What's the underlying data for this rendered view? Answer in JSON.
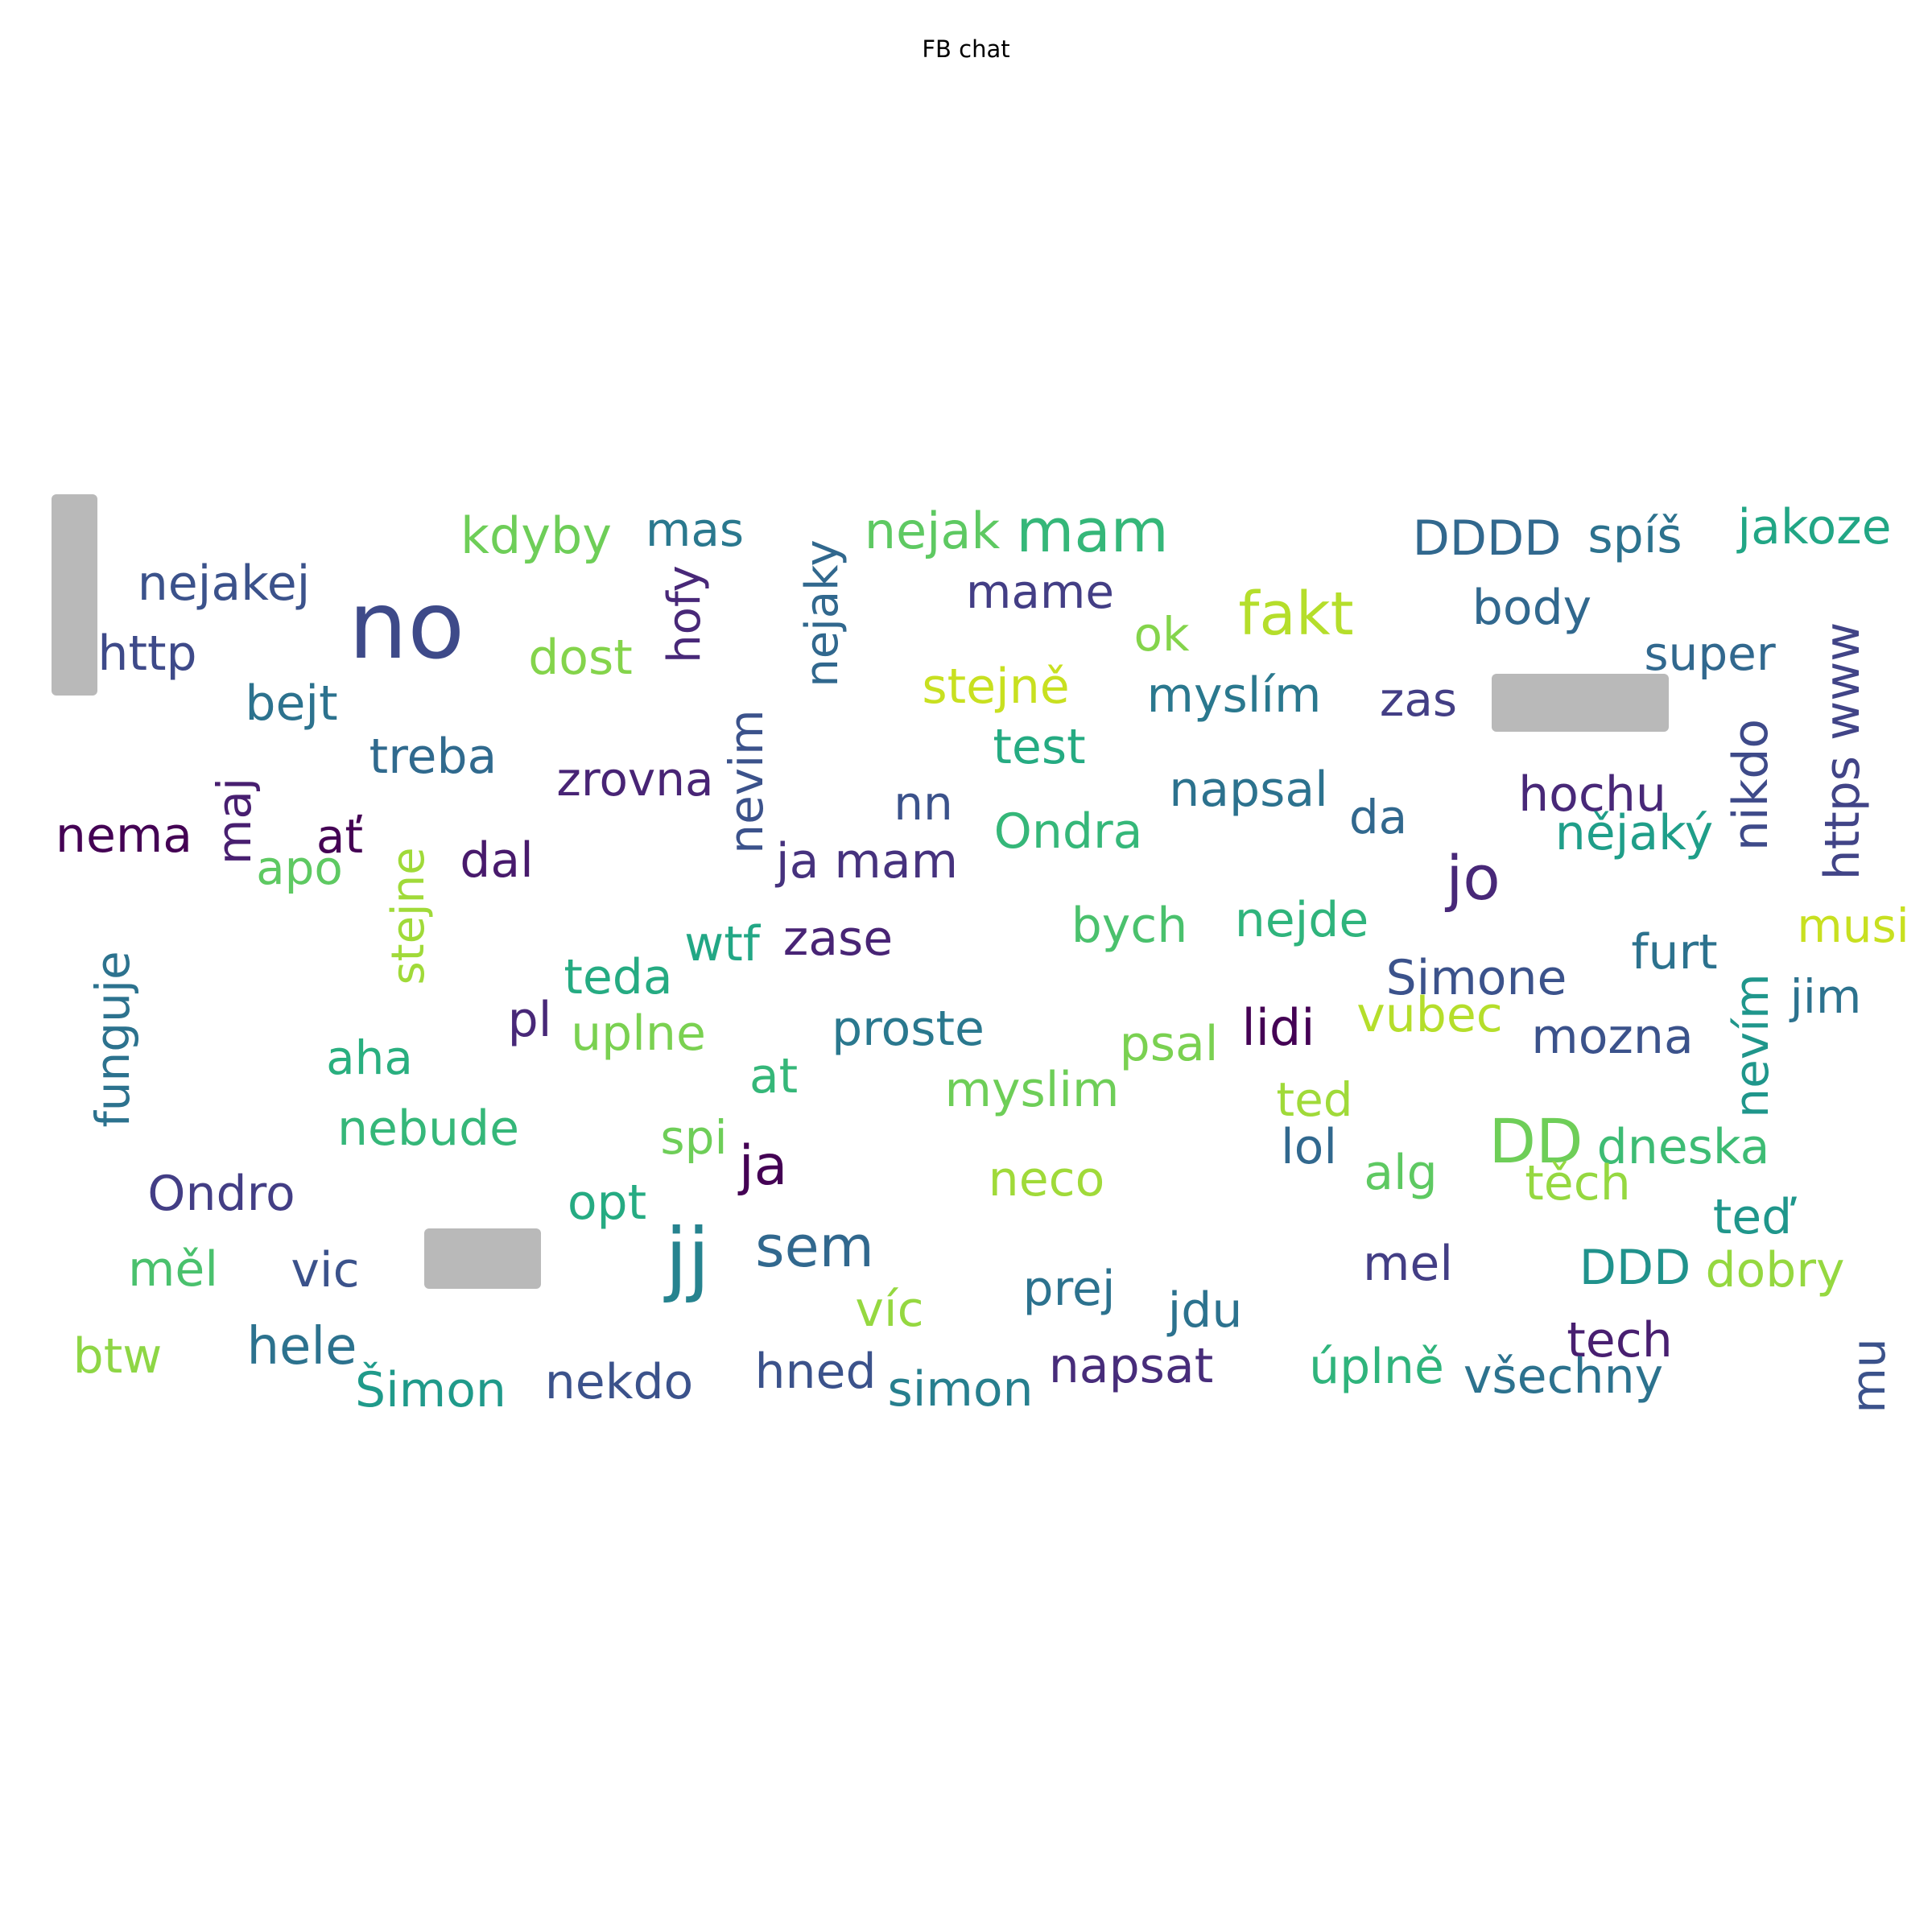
{
  "title": "FB chat",
  "colors": {
    "block": "#b9b9b9",
    "title": "#000000"
  },
  "words": [
    {
      "text": "no",
      "color": "#3e4a89"
    },
    {
      "text": "jo",
      "color": "#482878"
    },
    {
      "text": "jj",
      "color": "#26838f"
    },
    {
      "text": "sem",
      "color": "#31688e"
    },
    {
      "text": "ja",
      "color": "#440154"
    },
    {
      "text": "mam",
      "color": "#35b779"
    },
    {
      "text": "fakt",
      "color": "#b5de2b"
    },
    {
      "text": "DD",
      "color": "#6ece58"
    },
    {
      "text": "kdyby",
      "color": "#6ece58"
    },
    {
      "text": "mas",
      "color": "#2a788e"
    },
    {
      "text": "nejak",
      "color": "#5ec962"
    },
    {
      "text": "DDDD",
      "color": "#31688e"
    },
    {
      "text": "spíš",
      "color": "#2c728e"
    },
    {
      "text": "jakoze",
      "color": "#21a685"
    },
    {
      "text": "nejakej",
      "color": "#3b528b"
    },
    {
      "text": "mame",
      "color": "#433e85"
    },
    {
      "text": "body",
      "color": "#31688e"
    },
    {
      "text": "http",
      "color": "#3e4a89"
    },
    {
      "text": "dost",
      "color": "#84d44b"
    },
    {
      "text": "ok",
      "color": "#84d44b"
    },
    {
      "text": "super",
      "color": "#31688e"
    },
    {
      "text": "hofy",
      "color": "#482878"
    },
    {
      "text": "nejaky",
      "color": "#31688e"
    },
    {
      "text": "https www",
      "color": "#414487"
    },
    {
      "text": "stejně",
      "color": "#c8e020"
    },
    {
      "text": "myslím",
      "color": "#2a788e"
    },
    {
      "text": "zas",
      "color": "#433e85"
    },
    {
      "text": "bejt",
      "color": "#2c728e"
    },
    {
      "text": "test",
      "color": "#25ab82"
    },
    {
      "text": "treba",
      "color": "#306a8e"
    },
    {
      "text": "zrovna",
      "color": "#482475"
    },
    {
      "text": "nevim",
      "color": "#3b528b"
    },
    {
      "text": "napsal",
      "color": "#2c728e"
    },
    {
      "text": "hochu",
      "color": "#482878"
    },
    {
      "text": "nikdo",
      "color": "#3e4a89"
    },
    {
      "text": "maj",
      "color": "#481f70"
    },
    {
      "text": "nn",
      "color": "#3b528b"
    },
    {
      "text": "da",
      "color": "#31688e"
    },
    {
      "text": "Ondra",
      "color": "#35b779"
    },
    {
      "text": "nějaký",
      "color": "#1f9e89"
    },
    {
      "text": "nema",
      "color": "#440154"
    },
    {
      "text": "ať",
      "color": "#440154"
    },
    {
      "text": "apo",
      "color": "#5ec962"
    },
    {
      "text": "dal",
      "color": "#481a6c"
    },
    {
      "text": "ja mam",
      "color": "#46327e"
    },
    {
      "text": "stejne",
      "color": "#a0da39"
    },
    {
      "text": "bych",
      "color": "#4ac16d"
    },
    {
      "text": "nejde",
      "color": "#2fb47c"
    },
    {
      "text": "musi",
      "color": "#c8e020"
    },
    {
      "text": "wtf",
      "color": "#22a785"
    },
    {
      "text": "zase",
      "color": "#482475"
    },
    {
      "text": "furt",
      "color": "#2c728e"
    },
    {
      "text": "funguje",
      "color": "#2c728e"
    },
    {
      "text": "teda",
      "color": "#25ab82"
    },
    {
      "text": "Simone",
      "color": "#3b528b"
    },
    {
      "text": "jim",
      "color": "#2c728e"
    },
    {
      "text": "pl",
      "color": "#482878"
    },
    {
      "text": "uplne",
      "color": "#7ad151"
    },
    {
      "text": "proste",
      "color": "#2a788e"
    },
    {
      "text": "lidi",
      "color": "#440154"
    },
    {
      "text": "vubec",
      "color": "#b5de2b"
    },
    {
      "text": "mozna",
      "color": "#3b528b"
    },
    {
      "text": "nevím",
      "color": "#1f968b"
    },
    {
      "text": "aha",
      "color": "#29af7f"
    },
    {
      "text": "psal",
      "color": "#7ad151"
    },
    {
      "text": "at",
      "color": "#35b779"
    },
    {
      "text": "myslim",
      "color": "#6ece58"
    },
    {
      "text": "ted",
      "color": "#a0da39"
    },
    {
      "text": "nebude",
      "color": "#35b779"
    },
    {
      "text": "spi",
      "color": "#6ece58"
    },
    {
      "text": "lol",
      "color": "#31688e"
    },
    {
      "text": "alg",
      "color": "#5ec962"
    },
    {
      "text": "dneska",
      "color": "#3dbc74"
    },
    {
      "text": "těch",
      "color": "#95d840"
    },
    {
      "text": "Ondro",
      "color": "#433e85"
    },
    {
      "text": "neco",
      "color": "#a0da39"
    },
    {
      "text": "opt",
      "color": "#25ab82"
    },
    {
      "text": "teď",
      "color": "#1f968b"
    },
    {
      "text": "měl",
      "color": "#4ac16d"
    },
    {
      "text": "vic",
      "color": "#3b528b"
    },
    {
      "text": "mel",
      "color": "#433e85"
    },
    {
      "text": "DDD",
      "color": "#20928c"
    },
    {
      "text": "dobry",
      "color": "#95d840"
    },
    {
      "text": "prej",
      "color": "#2c728e"
    },
    {
      "text": "víc",
      "color": "#95d840"
    },
    {
      "text": "jdu",
      "color": "#2c728e"
    },
    {
      "text": "tech",
      "color": "#481f70"
    },
    {
      "text": "btw",
      "color": "#8ed645"
    },
    {
      "text": "hele",
      "color": "#2c728e"
    },
    {
      "text": "Šimon",
      "color": "#1f9a8a"
    },
    {
      "text": "nekdo",
      "color": "#3b528b"
    },
    {
      "text": "hned",
      "color": "#3b528b"
    },
    {
      "text": "simon",
      "color": "#277f8e"
    },
    {
      "text": "napsat",
      "color": "#472c7a"
    },
    {
      "text": "úplně",
      "color": "#2fb47c"
    },
    {
      "text": "všechny",
      "color": "#2c728e"
    },
    {
      "text": "mu",
      "color": "#3b528b"
    }
  ]
}
